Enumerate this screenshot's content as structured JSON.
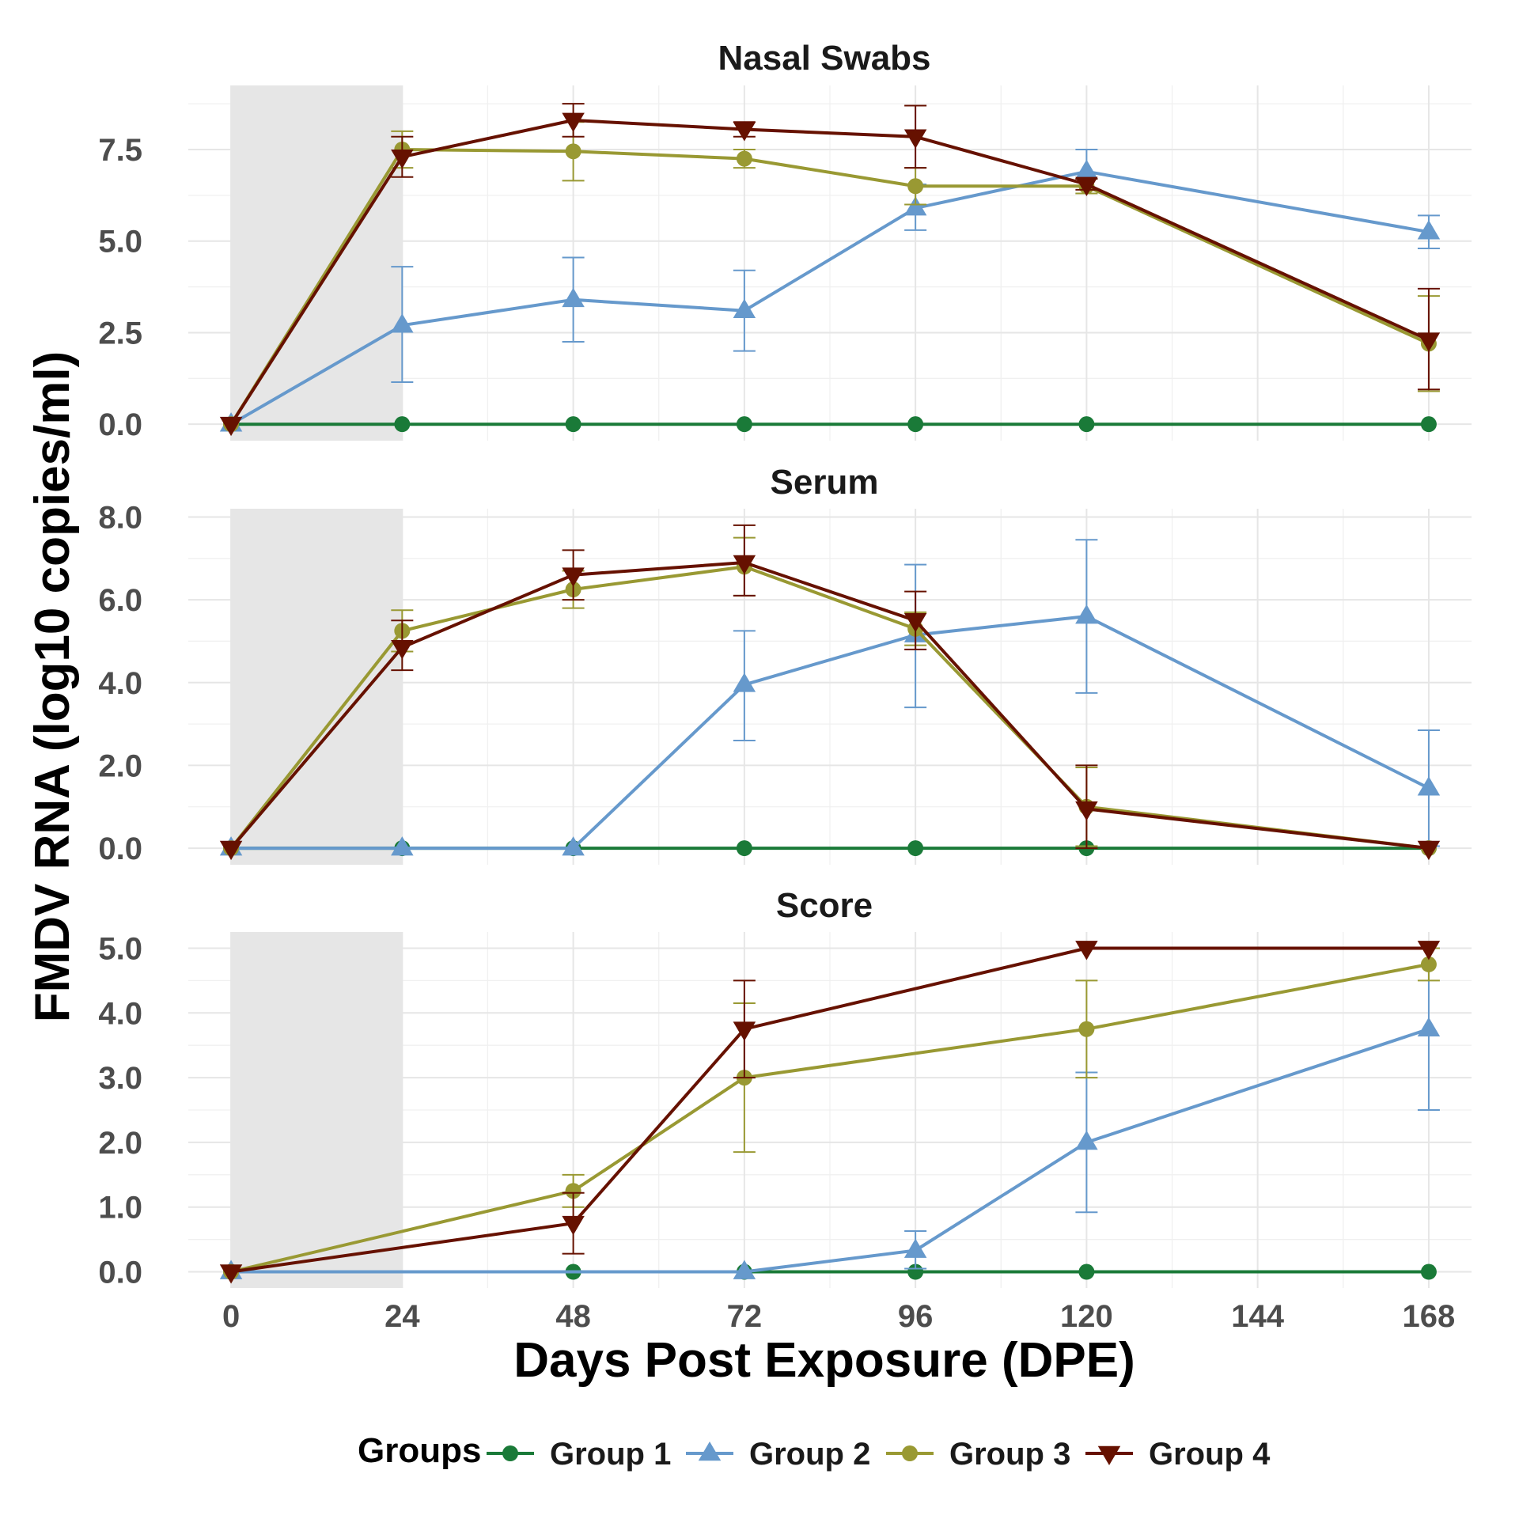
{
  "chart_data": {
    "type": "line",
    "xlabel": "Days Post Exposure (DPE)",
    "ylabel": "FMDV RNA (log10 copies/ml)",
    "x_ticks": [
      0,
      24,
      48,
      72,
      96,
      120,
      144,
      168
    ],
    "xlim": [
      -6,
      174
    ],
    "shaded_region": [
      0,
      24
    ],
    "legend": {
      "title": "Groups",
      "position": "bottom",
      "items": [
        {
          "name": "Group 1",
          "color": "#1a7a38",
          "marker": "circle"
        },
        {
          "name": "Group 2",
          "color": "#6699cc",
          "marker": "triangle-up"
        },
        {
          "name": "Group 3",
          "color": "#999933",
          "marker": "circle"
        },
        {
          "name": "Group 4",
          "color": "#661100",
          "marker": "triangle-down"
        }
      ]
    },
    "panels": [
      {
        "title": "Nasal Swabs",
        "ylim": [
          -0.45,
          9.25
        ],
        "y_ticks": [
          0.0,
          2.5,
          5.0,
          7.5
        ],
        "y_tick_labels": [
          "0.0",
          "2.5",
          "5.0",
          "7.5"
        ],
        "y_minor": [
          1.25,
          3.75,
          6.25,
          8.75
        ],
        "series": [
          {
            "name": "Group 1",
            "points": [
              {
                "x": 0,
                "y": 0
              },
              {
                "x": 24,
                "y": 0
              },
              {
                "x": 48,
                "y": 0
              },
              {
                "x": 72,
                "y": 0
              },
              {
                "x": 96,
                "y": 0
              },
              {
                "x": 120,
                "y": 0
              },
              {
                "x": 168,
                "y": 0
              }
            ]
          },
          {
            "name": "Group 2",
            "points": [
              {
                "x": 0,
                "y": 0
              },
              {
                "x": 24,
                "y": 2.7,
                "lo": 1.15,
                "hi": 4.3
              },
              {
                "x": 48,
                "y": 3.4,
                "lo": 2.25,
                "hi": 4.55
              },
              {
                "x": 72,
                "y": 3.1,
                "lo": 2.0,
                "hi": 4.2
              },
              {
                "x": 96,
                "y": 5.9,
                "lo": 5.3,
                "hi": 6.55
              },
              {
                "x": 120,
                "y": 6.9,
                "lo": 6.3,
                "hi": 7.5
              },
              {
                "x": 168,
                "y": 5.25,
                "lo": 4.8,
                "hi": 5.7
              }
            ]
          },
          {
            "name": "Group 3",
            "points": [
              {
                "x": 0,
                "y": 0
              },
              {
                "x": 24,
                "y": 7.5,
                "lo": 7.0,
                "hi": 8.0
              },
              {
                "x": 48,
                "y": 7.45,
                "lo": 6.65,
                "hi": 8.25
              },
              {
                "x": 72,
                "y": 7.25,
                "lo": 7.0,
                "hi": 7.5
              },
              {
                "x": 96,
                "y": 6.5,
                "lo": 6.0,
                "hi": 7.0
              },
              {
                "x": 120,
                "y": 6.5,
                "lo": 6.3,
                "hi": 6.7
              },
              {
                "x": 168,
                "y": 2.2,
                "lo": 0.9,
                "hi": 3.5
              }
            ]
          },
          {
            "name": "Group 4",
            "points": [
              {
                "x": 0,
                "y": 0
              },
              {
                "x": 24,
                "y": 7.3,
                "lo": 6.75,
                "hi": 7.85
              },
              {
                "x": 48,
                "y": 8.3,
                "lo": 7.85,
                "hi": 8.75
              },
              {
                "x": 72,
                "y": 8.05,
                "lo": 7.85,
                "hi": 8.25
              },
              {
                "x": 96,
                "y": 7.85,
                "lo": 7.0,
                "hi": 8.7
              },
              {
                "x": 120,
                "y": 6.55,
                "lo": 6.4,
                "hi": 6.7
              },
              {
                "x": 168,
                "y": 2.3,
                "lo": 0.95,
                "hi": 3.7
              }
            ]
          }
        ]
      },
      {
        "title": "Serum",
        "ylim": [
          -0.4,
          8.2
        ],
        "y_ticks": [
          0,
          2,
          4,
          6,
          8
        ],
        "y_tick_labels": [
          "0.0",
          "2.0",
          "4.0",
          "6.0",
          "8.0"
        ],
        "y_minor": [
          1,
          3,
          5,
          7
        ],
        "series": [
          {
            "name": "Group 1",
            "points": [
              {
                "x": 0,
                "y": 0
              },
              {
                "x": 24,
                "y": 0
              },
              {
                "x": 48,
                "y": 0
              },
              {
                "x": 72,
                "y": 0
              },
              {
                "x": 96,
                "y": 0
              },
              {
                "x": 120,
                "y": 0
              },
              {
                "x": 168,
                "y": 0
              }
            ]
          },
          {
            "name": "Group 2",
            "points": [
              {
                "x": 0,
                "y": 0
              },
              {
                "x": 24,
                "y": 0
              },
              {
                "x": 48,
                "y": 0
              },
              {
                "x": 72,
                "y": 3.95,
                "lo": 2.6,
                "hi": 5.25
              },
              {
                "x": 96,
                "y": 5.15,
                "lo": 3.4,
                "hi": 6.85
              },
              {
                "x": 120,
                "y": 5.6,
                "lo": 3.75,
                "hi": 7.45
              },
              {
                "x": 168,
                "y": 1.45,
                "lo": 0.05,
                "hi": 2.85
              }
            ]
          },
          {
            "name": "Group 3",
            "points": [
              {
                "x": 0,
                "y": 0
              },
              {
                "x": 24,
                "y": 5.25,
                "lo": 4.75,
                "hi": 5.75
              },
              {
                "x": 48,
                "y": 6.25,
                "lo": 5.8,
                "hi": 6.7
              },
              {
                "x": 72,
                "y": 6.8,
                "lo": 6.1,
                "hi": 7.5
              },
              {
                "x": 96,
                "y": 5.3,
                "lo": 4.9,
                "hi": 5.7
              },
              {
                "x": 120,
                "y": 1.0,
                "lo": 0.05,
                "hi": 1.95
              },
              {
                "x": 168,
                "y": 0
              }
            ]
          },
          {
            "name": "Group 4",
            "points": [
              {
                "x": 0,
                "y": 0
              },
              {
                "x": 24,
                "y": 4.85,
                "lo": 4.3,
                "hi": 5.5
              },
              {
                "x": 48,
                "y": 6.6,
                "lo": 6.0,
                "hi": 7.2
              },
              {
                "x": 72,
                "y": 6.9,
                "lo": 6.1,
                "hi": 7.8
              },
              {
                "x": 96,
                "y": 5.5,
                "lo": 4.8,
                "hi": 6.2
              },
              {
                "x": 120,
                "y": 0.95,
                "lo": 0.0,
                "hi": 2.0
              },
              {
                "x": 168,
                "y": 0
              }
            ]
          }
        ]
      },
      {
        "title": "Score",
        "ylim": [
          -0.25,
          5.25
        ],
        "y_ticks": [
          0,
          1,
          2,
          3,
          4,
          5
        ],
        "y_tick_labels": [
          "0.0",
          "1.0",
          "2.0",
          "3.0",
          "4.0",
          "5.0"
        ],
        "y_minor": [
          0.5,
          1.5,
          2.5,
          3.5,
          4.5
        ],
        "series": [
          {
            "name": "Group 1",
            "points": [
              {
                "x": 0,
                "y": 0
              },
              {
                "x": 48,
                "y": 0
              },
              {
                "x": 72,
                "y": 0
              },
              {
                "x": 96,
                "y": 0
              },
              {
                "x": 120,
                "y": 0
              },
              {
                "x": 168,
                "y": 0
              }
            ]
          },
          {
            "name": "Group 2",
            "points": [
              {
                "x": 0,
                "y": 0
              },
              {
                "x": 72,
                "y": 0
              },
              {
                "x": 96,
                "y": 0.33,
                "lo": 0.05,
                "hi": 0.63
              },
              {
                "x": 120,
                "y": 2.0,
                "lo": 0.92,
                "hi": 3.08
              },
              {
                "x": 168,
                "y": 3.75,
                "lo": 2.5,
                "hi": 5.0
              }
            ]
          },
          {
            "name": "Group 3",
            "points": [
              {
                "x": 0,
                "y": 0
              },
              {
                "x": 48,
                "y": 1.25,
                "lo": 1.0,
                "hi": 1.5
              },
              {
                "x": 72,
                "y": 3.0,
                "lo": 1.85,
                "hi": 4.15
              },
              {
                "x": 120,
                "y": 3.75,
                "lo": 3.0,
                "hi": 4.5
              },
              {
                "x": 168,
                "y": 4.75,
                "lo": 4.5,
                "hi": 5.0
              }
            ]
          },
          {
            "name": "Group 4",
            "points": [
              {
                "x": 0,
                "y": 0
              },
              {
                "x": 48,
                "y": 0.75,
                "lo": 0.28,
                "hi": 1.22
              },
              {
                "x": 72,
                "y": 3.75,
                "lo": 3.0,
                "hi": 4.5
              },
              {
                "x": 120,
                "y": 5.0
              },
              {
                "x": 168,
                "y": 5.0
              }
            ]
          }
        ]
      }
    ]
  }
}
